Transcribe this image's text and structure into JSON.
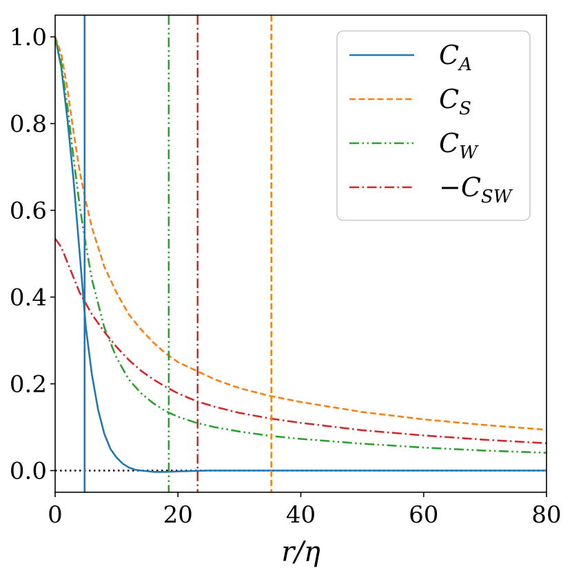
{
  "chart_data": {
    "type": "line",
    "title": "",
    "xlabel": "r/η",
    "ylabel": "",
    "xlim": [
      0,
      80
    ],
    "ylim": [
      -0.05,
      1.05
    ],
    "grid": false,
    "legend_position": "top-right",
    "x_ticks": [
      0,
      20,
      40,
      60,
      80
    ],
    "x_tick_labels": [
      "0",
      "20",
      "40",
      "60",
      "80"
    ],
    "y_ticks": [
      0.0,
      0.2,
      0.4,
      0.6,
      0.8,
      1.0
    ],
    "y_tick_labels": [
      "0.0",
      "0.2",
      "0.4",
      "0.6",
      "0.8",
      "1.0"
    ],
    "series": [
      {
        "name": "C_A",
        "legend_main": "C",
        "legend_sub": "A",
        "legend_prefix": "",
        "color": "#1f77b4",
        "dash": "solid",
        "x": [
          0,
          1,
          2,
          3,
          4,
          5,
          6,
          7,
          8,
          9,
          10,
          11,
          12,
          13,
          14,
          16,
          18,
          20,
          25,
          30,
          40,
          50,
          60,
          70,
          80
        ],
        "y": [
          1.0,
          0.93,
          0.81,
          0.67,
          0.5,
          0.33,
          0.22,
          0.14,
          0.085,
          0.05,
          0.03,
          0.016,
          0.007,
          0.002,
          0.0,
          -0.003,
          -0.003,
          -0.002,
          0.0,
          0.0,
          0.0,
          0.0,
          0.0,
          0.0,
          0.0
        ],
        "vline": 4.8
      },
      {
        "name": "C_S",
        "legend_main": "C",
        "legend_sub": "S",
        "legend_prefix": "",
        "color": "#ff7f0e",
        "dash": "dashed",
        "x": [
          0,
          1,
          2,
          3,
          4,
          5,
          6,
          8,
          10,
          12,
          14,
          16,
          18,
          20,
          23,
          26,
          30,
          35,
          40,
          50,
          60,
          70,
          80
        ],
        "y": [
          1.0,
          0.96,
          0.88,
          0.78,
          0.69,
          0.62,
          0.56,
          0.47,
          0.41,
          0.36,
          0.325,
          0.295,
          0.27,
          0.25,
          0.23,
          0.21,
          0.19,
          0.172,
          0.158,
          0.135,
          0.118,
          0.105,
          0.094
        ],
        "vline": 35.2
      },
      {
        "name": "C_W",
        "legend_main": "C",
        "legend_sub": "W",
        "legend_prefix": "",
        "color": "#2ca02c",
        "dash": "dashdotdot",
        "x": [
          0,
          1,
          2,
          3,
          4,
          5,
          6,
          8,
          10,
          12,
          14,
          16,
          18,
          20,
          23,
          26,
          30,
          35,
          40,
          50,
          60,
          70,
          80
        ],
        "y": [
          1.0,
          0.94,
          0.84,
          0.72,
          0.61,
          0.52,
          0.44,
          0.33,
          0.26,
          0.21,
          0.178,
          0.155,
          0.137,
          0.124,
          0.11,
          0.1,
          0.09,
          0.08,
          0.073,
          0.062,
          0.053,
          0.046,
          0.041
        ],
        "vline": 18.5
      },
      {
        "name": "-C_SW",
        "legend_main": "C",
        "legend_sub": "SW",
        "legend_prefix": "−",
        "color": "#d62728",
        "dash": "dashdot",
        "x": [
          0,
          1,
          2,
          3,
          4,
          5,
          6,
          8,
          10,
          12,
          14,
          16,
          18,
          20,
          23,
          26,
          30,
          35,
          40,
          50,
          60,
          70,
          80
        ],
        "y": [
          0.535,
          0.515,
          0.48,
          0.445,
          0.41,
          0.385,
          0.36,
          0.32,
          0.285,
          0.255,
          0.23,
          0.21,
          0.193,
          0.178,
          0.16,
          0.147,
          0.133,
          0.12,
          0.11,
          0.093,
          0.081,
          0.071,
          0.063
        ],
        "vline": 23.2
      }
    ],
    "reference_line": {
      "y": 0.0,
      "color": "#000000",
      "dash": "dotted"
    }
  }
}
